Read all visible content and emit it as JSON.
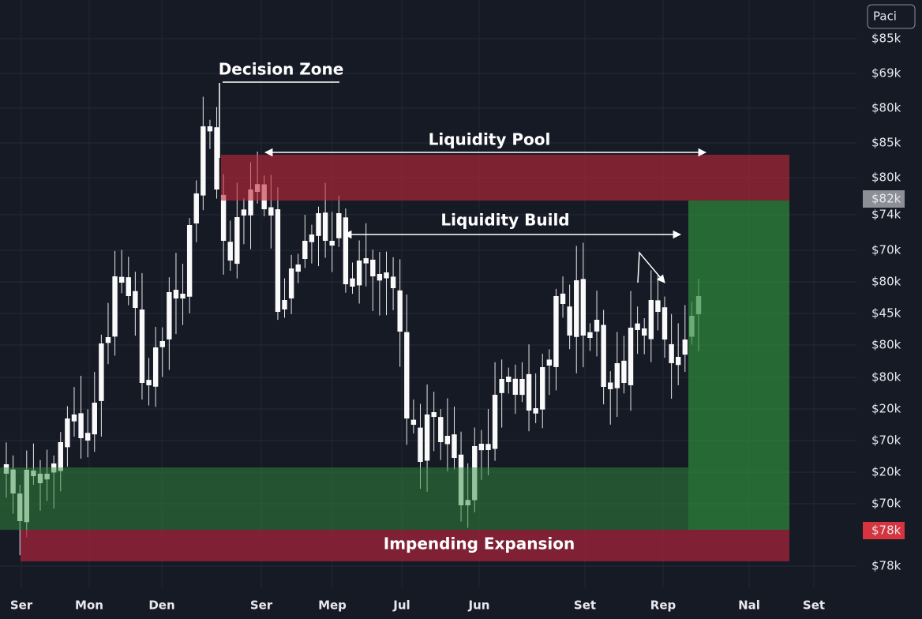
{
  "header": {
    "button": "Paci"
  },
  "price_axis": [
    "$85k",
    "$69k",
    "$80k",
    "$85k",
    "$80k",
    "$74k",
    "$70k",
    "$80k",
    "$45k",
    "$80k",
    "$80k",
    "$20k",
    "$70k",
    "$20k",
    "$70k",
    "$78k"
  ],
  "price_tags": {
    "upper": "$82k",
    "lower": "$78k"
  },
  "time_axis": [
    "Ser",
    "Mon",
    "Den",
    "Ser",
    "Mep",
    "Jul",
    "Jun",
    "Set",
    "Rep",
    "Nal",
    "Set"
  ],
  "annotations": {
    "decision_zone": "Decision Zone",
    "liquidity_pool": "Liquidity Pool",
    "liquidity_build": "Liquidity Build",
    "impending_expansion": "Impending Expansion"
  }
}
